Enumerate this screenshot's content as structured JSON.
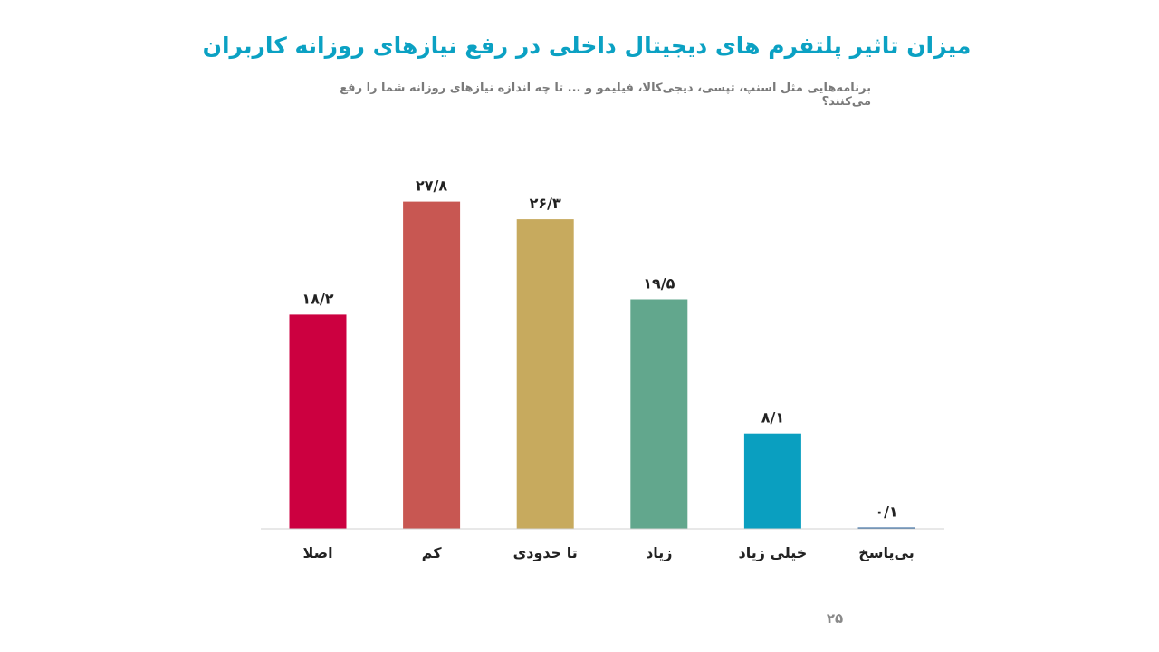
{
  "page": {
    "number": "۲۵"
  },
  "chart_data": {
    "type": "bar",
    "title": "میزان تاثیر پلتفرم های دیجیتال داخلی در رفع نیازهای روزانه کاربران",
    "subtitle": "برنامه‌هایی مثل اسنپ، تپسی، دیجی‌کالا، فیلیمو و ...  تا چه اندازه نیازهای روزانه شما را رفع می‌کنند؟",
    "categories": [
      "اصلا",
      "کم",
      "تا حدودی",
      "زیاد",
      "خیلی زیاد",
      "بی‌پاسخ"
    ],
    "values": [
      18.2,
      27.8,
      26.3,
      19.5,
      8.1,
      0.1
    ],
    "value_labels": [
      "۱۸/۲",
      "۲۷/۸",
      "۲۶/۳",
      "۱۹/۵",
      "۸/۱",
      "۰/۱"
    ],
    "colors": [
      "#cc0040",
      "#c85752",
      "#c7aa5e",
      "#62a78d",
      "#0a9fc0",
      "#1f5a96"
    ],
    "xlabel": "",
    "ylabel": "",
    "ylim": [
      0,
      30
    ],
    "grid": false,
    "legend": "none"
  }
}
